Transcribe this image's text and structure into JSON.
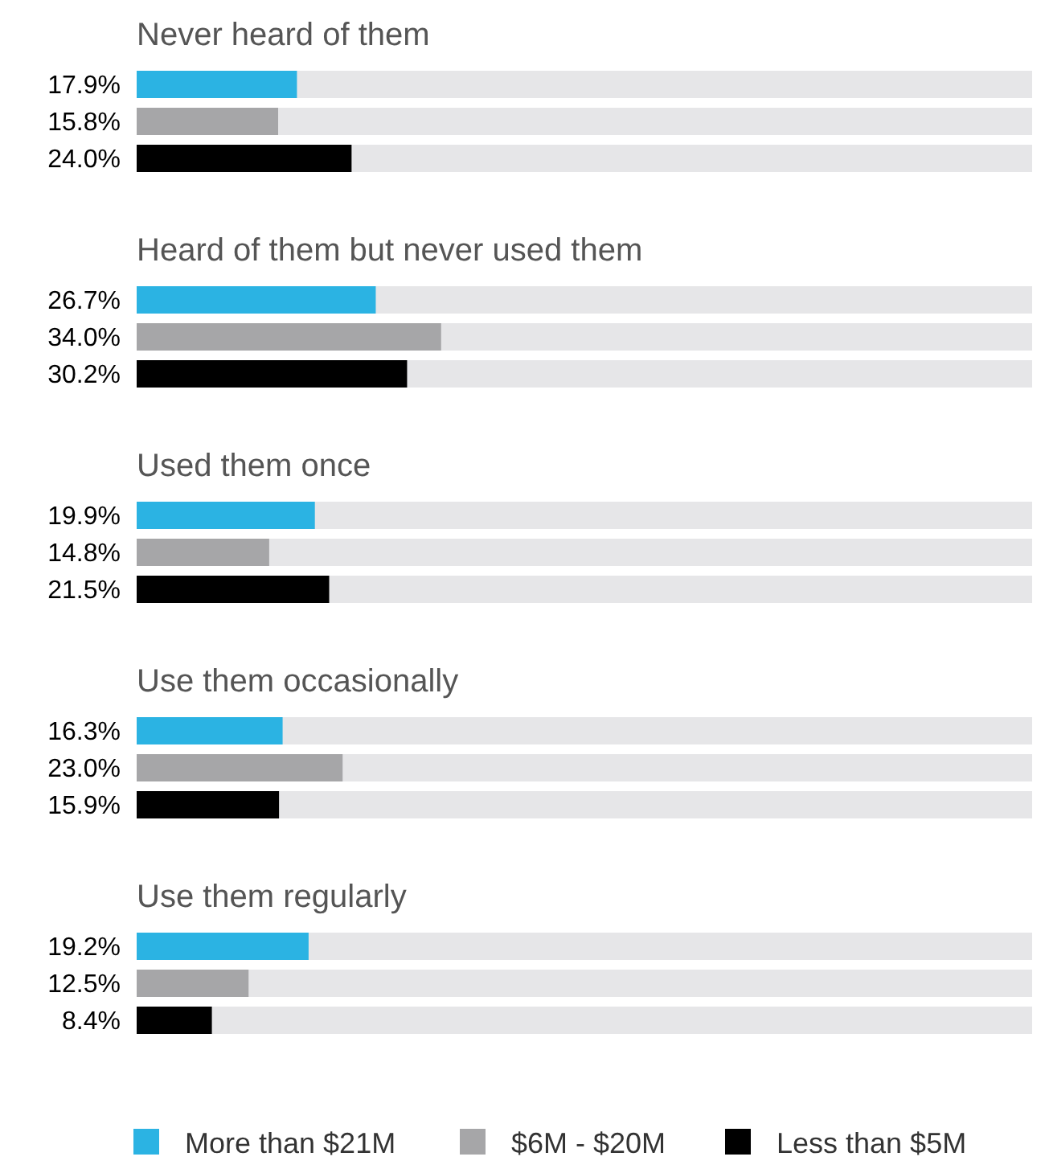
{
  "chart_data": {
    "type": "bar",
    "orientation": "horizontal",
    "categories": [
      "Never heard of them",
      "Heard of them but never used them",
      "Used them once",
      "Use them occasionally",
      "Use them regularly"
    ],
    "series": [
      {
        "name": "More than $21M",
        "color": "#2bb3e3",
        "values": [
          17.9,
          26.7,
          19.9,
          16.3,
          19.2
        ],
        "value_labels": [
          "17.9%",
          "26.7%",
          "19.9%",
          "16.3%",
          "19.2%"
        ]
      },
      {
        "name": "$6M - $20M",
        "color": "#a6a6a8",
        "values": [
          15.8,
          34.0,
          14.8,
          23.0,
          12.5
        ],
        "value_labels": [
          "15.8%",
          "34.0%",
          "14.8%",
          "23.0%",
          "12.5%"
        ]
      },
      {
        "name": "Less than $5M",
        "color": "#000000",
        "values": [
          24.0,
          30.2,
          21.5,
          15.9,
          8.4
        ],
        "value_labels": [
          "24.0%",
          "30.2%",
          "21.5%",
          "15.9%",
          "8.4%"
        ]
      }
    ],
    "xlim": [
      0,
      100
    ],
    "tick_labels": false,
    "legend": "bottom"
  }
}
